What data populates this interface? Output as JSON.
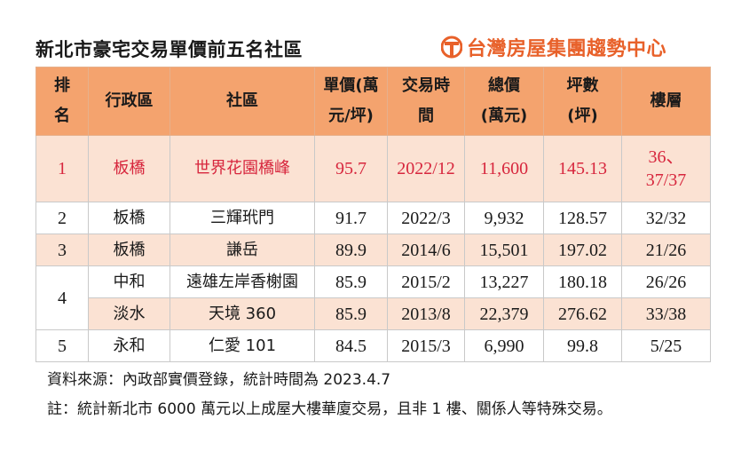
{
  "title": "新北市豪宅交易單價前五名社區",
  "logo": {
    "text": "台灣房屋集團趨勢中心",
    "icon": "taiwan-realty-logo-icon",
    "color": "#e8612a"
  },
  "table": {
    "headers": {
      "rank": [
        "排",
        "名"
      ],
      "district": "行政區",
      "community": "社區",
      "unit_price": [
        "單價(萬",
        "元/坪)"
      ],
      "date": [
        "交易時",
        "間"
      ],
      "total": [
        "總價",
        "(萬元)"
      ],
      "area": [
        "坪數",
        "(坪)"
      ],
      "floor": "樓層"
    },
    "rows": [
      {
        "rank": "1",
        "district": "板橋",
        "community": "世界花園橋峰",
        "unit_price": "95.7",
        "date": "2022/12",
        "total": "11,600",
        "area": "145.13",
        "floor": [
          "36、",
          "37/37"
        ]
      },
      {
        "rank": "2",
        "district": "板橋",
        "community": "三輝玳門",
        "unit_price": "91.7",
        "date": "2022/3",
        "total": "9,932",
        "area": "128.57",
        "floor": "32/32"
      },
      {
        "rank": "3",
        "district": "板橋",
        "community": "謙岳",
        "unit_price": "89.9",
        "date": "2014/6",
        "total": "15,501",
        "area": "197.02",
        "floor": "21/26"
      },
      {
        "rank": "4",
        "district": "中和",
        "community": "遠雄左岸香榭園",
        "unit_price": "85.9",
        "date": "2015/2",
        "total": "13,227",
        "area": "180.18",
        "floor": "26/26"
      },
      {
        "rank": "",
        "district": "淡水",
        "community": "天境 360",
        "unit_price": "85.9",
        "date": "2013/8",
        "total": "22,379",
        "area": "276.62",
        "floor": "33/38"
      },
      {
        "rank": "5",
        "district": "永和",
        "community": "仁愛 101",
        "unit_price": "84.5",
        "date": "2015/3",
        "total": "6,990",
        "area": "99.8",
        "floor": "5/25"
      }
    ]
  },
  "notes": {
    "source": "資料來源：內政部實價登錄，統計時間為 2023.4.7",
    "note": "註：統計新北市 6000 萬元以上成屋大樓華廈交易，且非 1 樓、關係人等特殊交易。"
  },
  "colors": {
    "header_bg": "#f4a36e",
    "highlight_bg": "#fbe2d3",
    "highlight_text": "#d7263d"
  }
}
